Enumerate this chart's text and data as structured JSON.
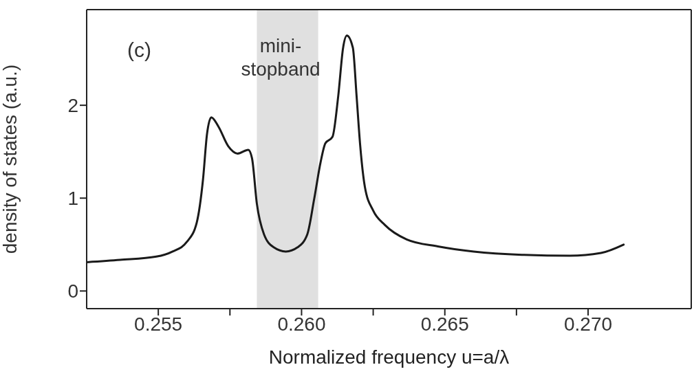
{
  "chart_data": {
    "type": "line",
    "xlabel": "Normalized frequency u=a/λ",
    "ylabel": "density of states (a.u.)",
    "x": [
      0.25251,
      0.25367,
      0.25493,
      0.2555,
      0.256,
      0.25634,
      0.25656,
      0.2567,
      0.25685,
      0.2571,
      0.25744,
      0.25777,
      0.25814,
      0.25827,
      0.25844,
      0.25869,
      0.25903,
      0.25945,
      0.25986,
      0.2602,
      0.26044,
      0.26066,
      0.26083,
      0.26108,
      0.26128,
      0.26145,
      0.26158,
      0.26179,
      0.26192,
      0.26204,
      0.26221,
      0.2625,
      0.26291,
      0.26367,
      0.26476,
      0.26601,
      0.26769,
      0.26936,
      0.27045,
      0.27124
    ],
    "series": [
      {
        "color": "#1a1a1a",
        "values": [
          0.31,
          0.335,
          0.37,
          0.425,
          0.53,
          0.735,
          1.2,
          1.69,
          1.87,
          1.77,
          1.56,
          1.48,
          1.52,
          1.43,
          0.94,
          0.61,
          0.47,
          0.425,
          0.47,
          0.61,
          0.99,
          1.38,
          1.59,
          1.66,
          2.1,
          2.62,
          2.75,
          2.62,
          2.1,
          1.59,
          1.12,
          0.865,
          0.71,
          0.555,
          0.48,
          0.425,
          0.39,
          0.38,
          0.41,
          0.5
        ]
      }
    ],
    "xlim": [
      0.2525,
      0.2736
    ],
    "ylim": [
      -0.19,
      3.03
    ],
    "xticks": [
      {
        "value": 0.255,
        "label": "0.255"
      },
      {
        "value": 0.2575,
        "label": null
      },
      {
        "value": 0.26,
        "label": "0.260"
      },
      {
        "value": 0.2625,
        "label": null
      },
      {
        "value": 0.265,
        "label": "0.265"
      },
      {
        "value": 0.2675,
        "label": null
      },
      {
        "value": 0.27,
        "label": "0.270"
      }
    ],
    "yticks": [
      0,
      1,
      2
    ],
    "bands": [
      {
        "axis": "x",
        "from": 0.25844,
        "to": 0.26058,
        "label": "mini-\nstopband",
        "color": "#e0e0e0"
      }
    ],
    "annotations": [
      "(c)"
    ],
    "grid": false,
    "legend": false,
    "marker": "none",
    "line_style": "solid"
  }
}
